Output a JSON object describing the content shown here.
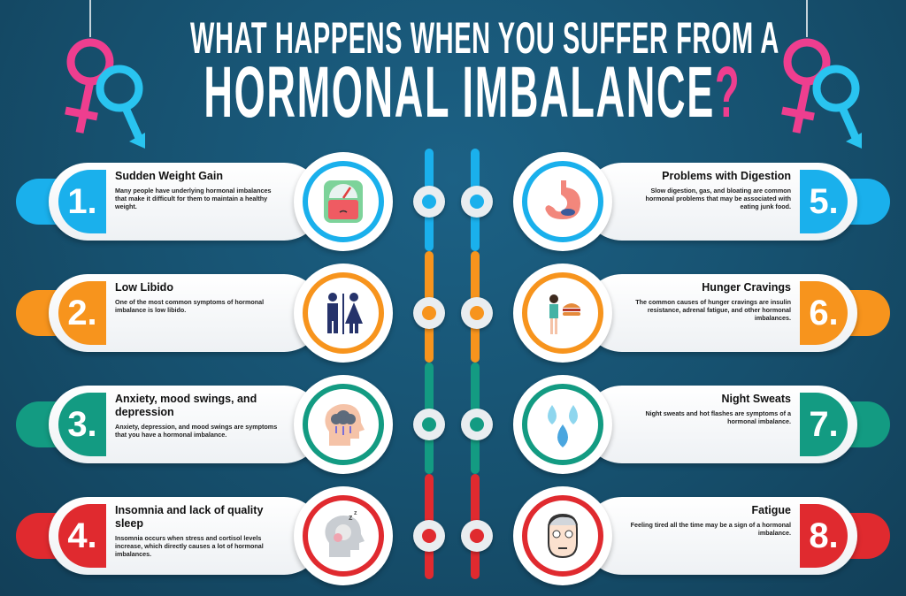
{
  "title": {
    "line1": "WHAT HAPPENS WHEN YOU SUFFER FROM A",
    "line2": "HORMONAL IMBALANCE",
    "question_mark": "?"
  },
  "colors": {
    "background": "#16506e",
    "blue": "#1ab0ec",
    "orange": "#f7941d",
    "teal": "#139b82",
    "red": "#e02a2f",
    "pink": "#ee3e8f",
    "cyan": "#29c4f0"
  },
  "items": [
    {
      "number": "1.",
      "heading": "Sudden Weight Gain",
      "description": "Many people have underlying hormonal imbalances that make it difficult for them to maintain a healthy weight.",
      "icon": "scale-icon",
      "color": "#1ab0ec",
      "side": "left"
    },
    {
      "number": "2.",
      "heading": "Low Libido",
      "description": "One of the most common symptoms of hormonal imbalance is low libido.",
      "icon": "man-woman-icon",
      "color": "#f7941d",
      "side": "left"
    },
    {
      "number": "3.",
      "heading": "Anxiety, mood swings, and depression",
      "description": "Anxiety, depression, and mood swings are symptoms that you have a hormonal imbalance.",
      "icon": "head-raincloud-icon",
      "color": "#139b82",
      "side": "left"
    },
    {
      "number": "4.",
      "heading": "Insomnia and lack of quality sleep",
      "description": "Insomnia occurs when stress and cortisol levels increase, which directly causes a lot of hormonal imbalances.",
      "icon": "sleep-head-icon",
      "color": "#e02a2f",
      "side": "left"
    },
    {
      "number": "5.",
      "heading": "Problems with Digestion",
      "description": "Slow digestion, gas, and bloating are common hormonal problems that may be associated with eating junk food.",
      "icon": "stomach-icon",
      "color": "#1ab0ec",
      "side": "right"
    },
    {
      "number": "6.",
      "heading": "Hunger Cravings",
      "description": "The common causes of hunger cravings are insulin resistance, adrenal fatigue, and other hormonal imbalances.",
      "icon": "burger-craving-icon",
      "color": "#f7941d",
      "side": "right"
    },
    {
      "number": "7.",
      "heading": "Night Sweats",
      "description": "Night sweats and hot flashes are symptoms of a hormonal imbalance.",
      "icon": "sweat-drops-icon",
      "color": "#139b82",
      "side": "right"
    },
    {
      "number": "8.",
      "heading": "Fatigue",
      "description": "Feeling tired all the time may be a sign of a hormonal imbalance.",
      "icon": "tired-face-icon",
      "color": "#e02a2f",
      "side": "right"
    }
  ]
}
